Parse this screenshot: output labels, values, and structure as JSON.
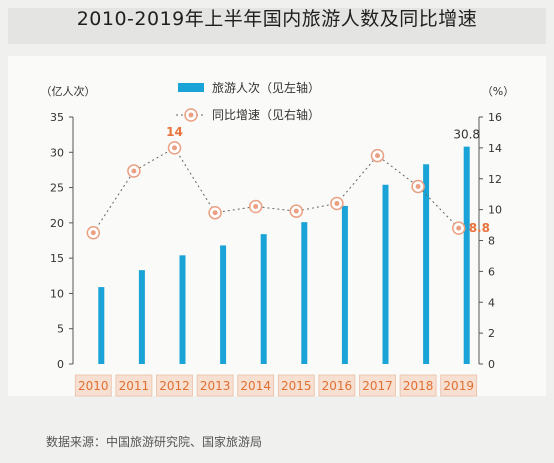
{
  "title": "2010-2019年上半年国内旅游人数及同比增速",
  "source": "数据来源：中国旅游研究院、国家旅游局",
  "colors": {
    "bar": "#1aa3d6",
    "line": "#666666",
    "marker": "#e9a083",
    "label": "#e8733c",
    "year_box": "#f7dfd2",
    "year_text": "#e07030"
  },
  "chart_data": {
    "type": "bar",
    "categories": [
      "2010",
      "2011",
      "2012",
      "2013",
      "2014",
      "2015",
      "2016",
      "2017",
      "2018",
      "2019"
    ],
    "series": [
      {
        "name": "旅游人次（见左轴）",
        "type": "bar",
        "axis": "left",
        "values": [
          10.9,
          13.3,
          15.4,
          16.8,
          18.4,
          20.1,
          22.4,
          25.4,
          28.3,
          30.8
        ]
      },
      {
        "name": "同比增速（见右轴）",
        "type": "line",
        "axis": "right",
        "values": [
          8.5,
          12.5,
          14,
          9.8,
          10.2,
          9.9,
          10.4,
          13.5,
          11.5,
          8.8
        ]
      }
    ],
    "data_labels": [
      {
        "series": 1,
        "index": 2,
        "text": "14"
      },
      {
        "series": 0,
        "index": 9,
        "text": "30.8"
      },
      {
        "series": 1,
        "index": 9,
        "text": "8.8"
      }
    ],
    "left_axis": {
      "label": "（亿人次）",
      "ylim": [
        0,
        35
      ],
      "ticks": [
        "0",
        "5",
        "10",
        "15",
        "20",
        "25",
        "30",
        "35"
      ]
    },
    "right_axis": {
      "label": "（%）",
      "ylim": [
        0,
        16
      ],
      "ticks": [
        "0",
        "2",
        "4",
        "6",
        "8",
        "10",
        "12",
        "14",
        "16"
      ]
    },
    "grid": false,
    "legend_position": "top-center"
  }
}
